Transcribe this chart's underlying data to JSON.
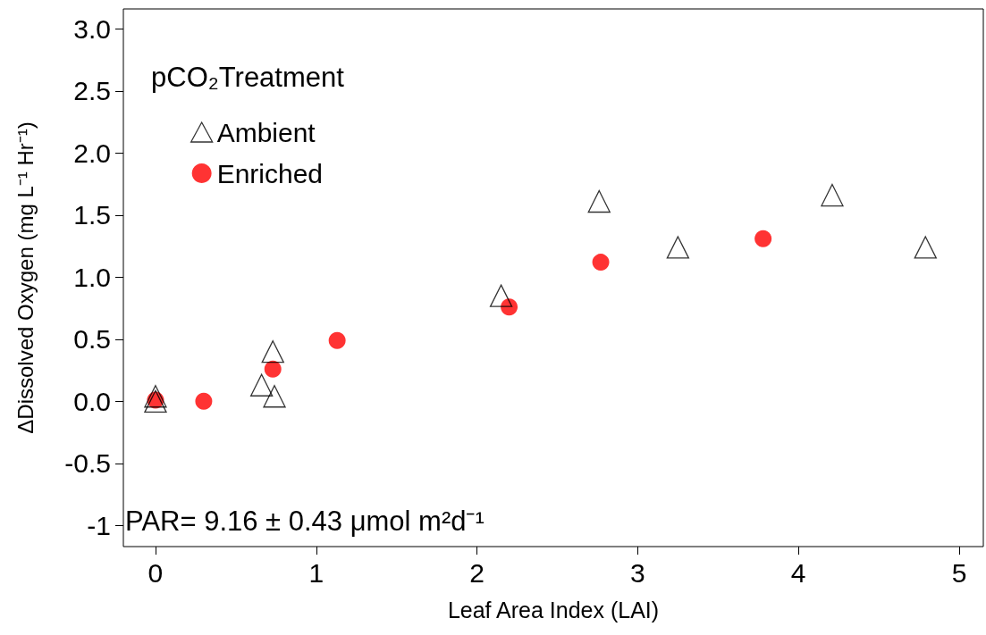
{
  "chart_data": {
    "type": "scatter",
    "xlabel": "Leaf Area Index (LAI)",
    "ylabel": "ΔDissolved Oxygen (mg L⁻¹ Hr⁻¹)",
    "legend_title": "pCO₂Treatment",
    "annotations": [
      "PAR= 9.16 ± 0.43 μmol m²d⁻¹"
    ],
    "series": [
      {
        "name": "Ambient",
        "color": "#000000",
        "marker": "triangle",
        "x": [
          0,
          0,
          0.66,
          0.73,
          0.74,
          2.15,
          2.76,
          3.25,
          4.21,
          4.79
        ],
        "values": [
          0.04,
          0.0,
          0.13,
          0.4,
          0.04,
          0.85,
          1.61,
          1.24,
          1.66,
          1.24
        ]
      },
      {
        "name": "Enriched",
        "color": "#ff0000",
        "marker": "circle",
        "x": [
          0,
          0.3,
          0.73,
          1.13,
          2.2,
          2.77,
          3.78
        ],
        "values": [
          0.01,
          0.0,
          0.26,
          0.49,
          0.76,
          1.12,
          1.31
        ]
      }
    ],
    "xlim": [
      -0.2,
      5.15
    ],
    "xticks": [
      0,
      1,
      2,
      3,
      4,
      5
    ],
    "ylim": [
      -1.17,
      3.16
    ],
    "yticks": [
      {
        "value": 3,
        "label": "3.0"
      },
      {
        "value": 2.5,
        "label": "2.5"
      },
      {
        "value": 2,
        "label": "2.0"
      },
      {
        "value": 1.5,
        "label": "1.5"
      },
      {
        "value": 1,
        "label": "1.0"
      },
      {
        "value": 0.5,
        "label": "0.5"
      },
      {
        "value": 0,
        "label": "0.0"
      },
      {
        "value": -0.5,
        "label": "-0.5"
      },
      -1
    ],
    "grid": false,
    "legend": "top left"
  }
}
